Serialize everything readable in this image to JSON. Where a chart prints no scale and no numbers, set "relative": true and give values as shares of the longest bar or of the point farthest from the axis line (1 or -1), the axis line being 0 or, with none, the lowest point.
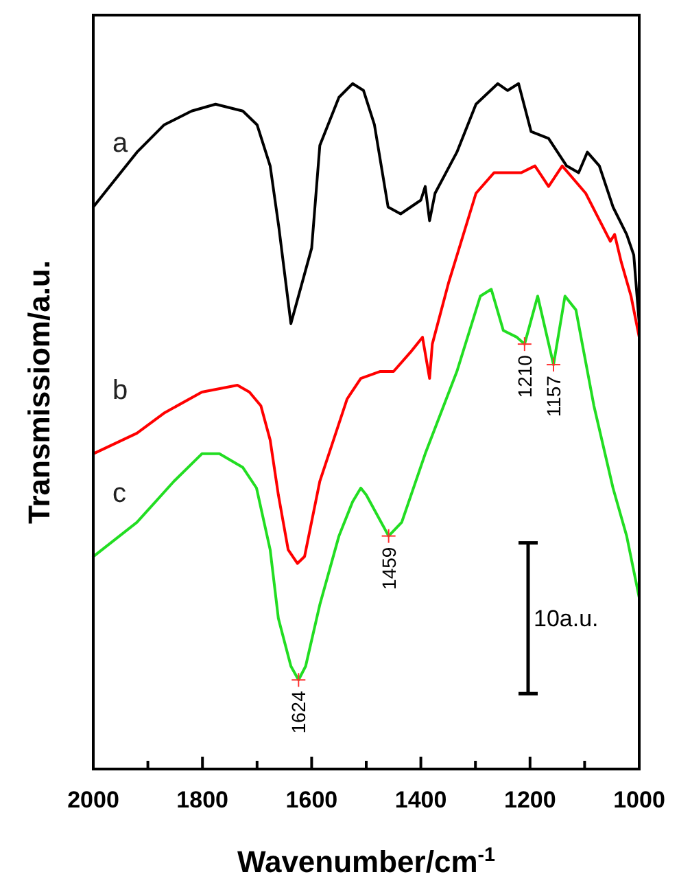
{
  "chart_data": {
    "type": "line",
    "relative": true,
    "xlabel": "Wavenumber/cm$^{-1}$",
    "ylabel": "Transmissiom/a.u.",
    "xlim": [
      2000,
      1000
    ],
    "xticks": [
      2000,
      {
        "value": 1900,
        "label": null
      },
      1800,
      {
        "value": 1700,
        "label": null
      },
      1600,
      {
        "value": 1500,
        "label": null
      },
      1400,
      {
        "value": 1300,
        "label": null
      },
      1200,
      {
        "value": 1100,
        "label": null
      },
      1000
    ],
    "marker": "none",
    "line_style": "solid",
    "series": [
      {
        "name": "a",
        "color": "#000000",
        "x": [
          2000,
          1970,
          1920,
          1870,
          1820,
          1776,
          1726,
          1700,
          1676,
          1660,
          1638,
          1600,
          1585,
          1550,
          1525,
          1505,
          1485,
          1460,
          1437,
          1400,
          1392,
          1384,
          1374,
          1334,
          1299,
          1259,
          1241,
          1221,
          1198,
          1166,
          1133,
          1111,
          1095,
          1073,
          1048,
          1023,
          1010,
          1000
        ],
        "values": [
          0.82,
          0.85,
          0.9,
          0.94,
          0.96,
          0.97,
          0.96,
          0.94,
          0.88,
          0.79,
          0.65,
          0.76,
          0.91,
          0.98,
          1.0,
          0.99,
          0.94,
          0.82,
          0.81,
          0.83,
          0.85,
          0.8,
          0.84,
          0.9,
          0.97,
          1.0,
          0.99,
          1.0,
          0.93,
          0.92,
          0.88,
          0.87,
          0.9,
          0.88,
          0.82,
          0.78,
          0.75,
          0.65
        ]
      },
      {
        "name": "b",
        "color": "#ff0000",
        "x": [
          2000,
          1920,
          1869,
          1801,
          1736,
          1714,
          1693,
          1676,
          1661,
          1643,
          1626,
          1613,
          1585,
          1535,
          1510,
          1475,
          1450,
          1417,
          1397,
          1384,
          1379,
          1349,
          1299,
          1266,
          1216,
          1191,
          1166,
          1141,
          1098,
          1053,
          1045,
          1033,
          1015,
          1000
        ],
        "values": [
          0.46,
          0.49,
          0.52,
          0.55,
          0.56,
          0.55,
          0.53,
          0.48,
          0.4,
          0.32,
          0.3,
          0.31,
          0.42,
          0.54,
          0.57,
          0.58,
          0.58,
          0.61,
          0.63,
          0.57,
          0.62,
          0.71,
          0.84,
          0.87,
          0.87,
          0.88,
          0.85,
          0.88,
          0.84,
          0.77,
          0.78,
          0.74,
          0.69,
          0.63
        ]
      },
      {
        "name": "c",
        "color": "#22dd22",
        "x": [
          2000,
          1920,
          1852,
          1801,
          1769,
          1726,
          1701,
          1676,
          1661,
          1638,
          1624,
          1611,
          1585,
          1550,
          1525,
          1510,
          1500,
          1459,
          1435,
          1392,
          1334,
          1291,
          1271,
          1249,
          1224,
          1210,
          1186,
          1157,
          1136,
          1116,
          1083,
          1048,
          1023,
          1000
        ],
        "values": [
          0.31,
          0.36,
          0.42,
          0.46,
          0.46,
          0.44,
          0.41,
          0.32,
          0.22,
          0.15,
          0.13,
          0.15,
          0.24,
          0.34,
          0.39,
          0.41,
          0.4,
          0.34,
          0.36,
          0.46,
          0.58,
          0.69,
          0.7,
          0.64,
          0.63,
          0.62,
          0.69,
          0.59,
          0.69,
          0.67,
          0.53,
          0.41,
          0.34,
          0.25
        ]
      }
    ],
    "annotations": [
      {
        "text": "1624",
        "x": 1624,
        "y": 0.13
      },
      {
        "text": "1459",
        "x": 1459,
        "y": 0.34
      },
      {
        "text": "1210",
        "x": 1210,
        "y": 0.62
      },
      {
        "text": "1157",
        "x": 1157,
        "y": 0.59
      },
      "10a.u."
    ]
  }
}
